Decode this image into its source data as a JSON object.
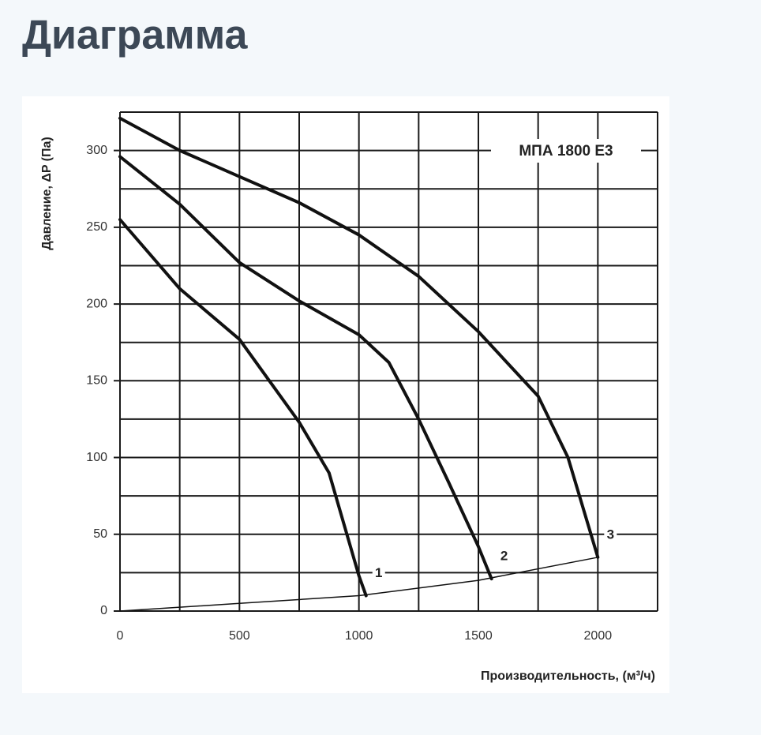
{
  "header": {
    "title": "Диаграмма"
  },
  "chart_data": {
    "type": "line",
    "title": "МПА 1800 Е3",
    "x_label": "Производительность, (м³/ч)",
    "y_label": "Давление, ΔP (Па)",
    "xlim": [
      0,
      2250
    ],
    "ylim": [
      0,
      325
    ],
    "xticks": [
      0,
      500,
      1000,
      1500,
      2000
    ],
    "yticks": [
      0,
      50,
      100,
      150,
      200,
      250,
      300
    ],
    "xminorticks": [
      250,
      750,
      1250,
      1750,
      2250
    ],
    "yminorticks": [
      25,
      75,
      125,
      175,
      225,
      275,
      325
    ],
    "grid": true,
    "series": [
      {
        "name": "1",
        "color": "#111111",
        "x": [
          0,
          250,
          500,
          750,
          875,
          1000,
          1030
        ],
        "values": [
          255,
          210,
          177,
          123,
          90,
          23,
          10
        ]
      },
      {
        "name": "2",
        "color": "#111111",
        "x": [
          0,
          250,
          500,
          750,
          1000,
          1125,
          1250,
          1375,
          1500,
          1555
        ],
        "values": [
          296,
          265,
          227,
          202,
          180,
          162,
          125,
          84,
          42,
          21
        ]
      },
      {
        "name": "3",
        "color": "#111111",
        "x": [
          0,
          250,
          500,
          750,
          1000,
          1250,
          1500,
          1750,
          1875,
          2000
        ],
        "values": [
          321,
          300,
          283,
          266,
          245,
          218,
          182,
          140,
          100,
          35
        ]
      },
      {
        "color": "#111111",
        "x": [
          0,
          500,
          1000,
          1500,
          2000
        ],
        "values": [
          0,
          5,
          10,
          20,
          35
        ]
      }
    ]
  }
}
